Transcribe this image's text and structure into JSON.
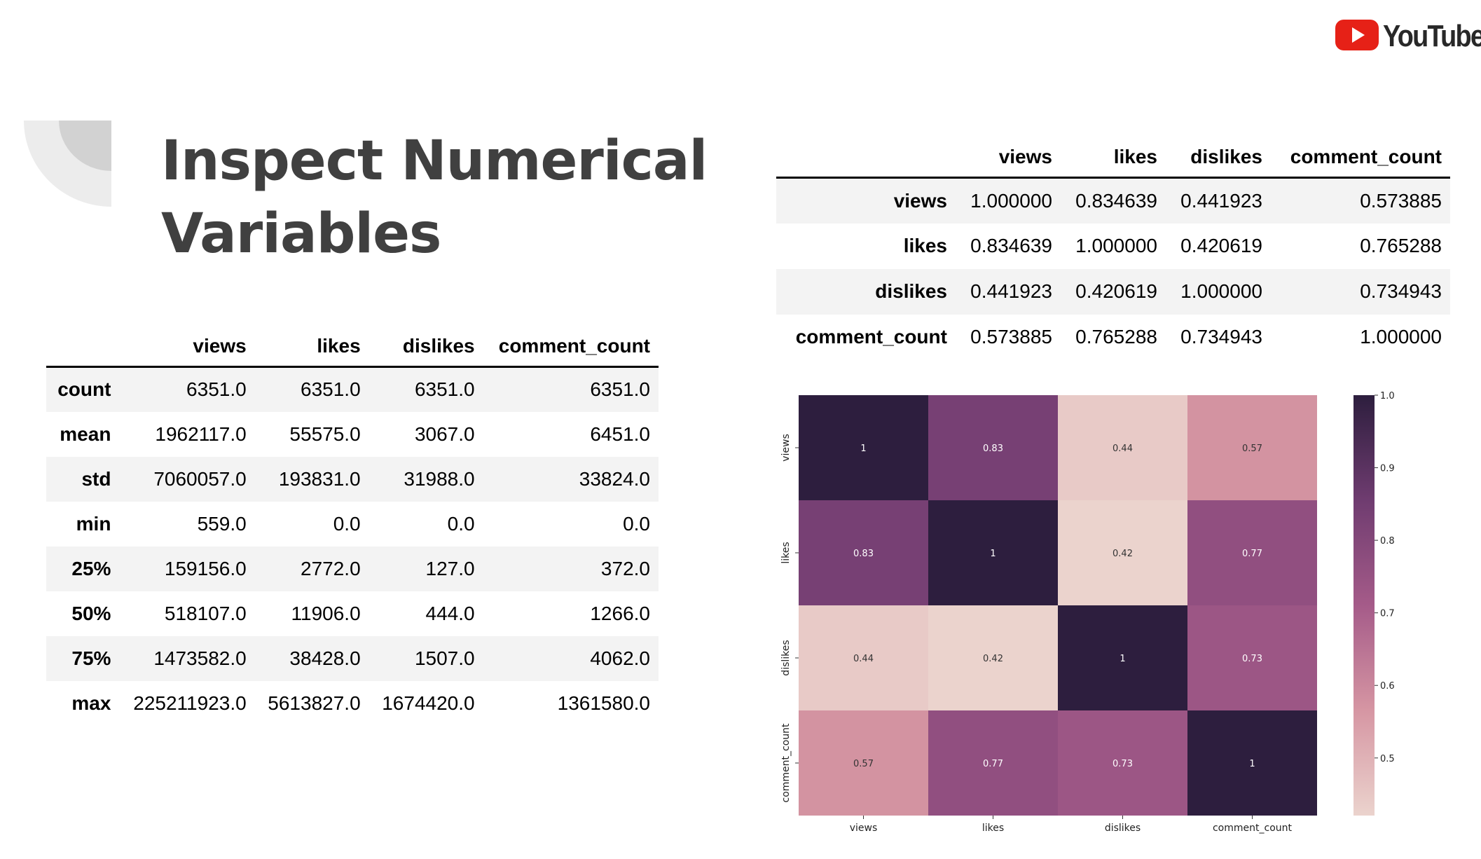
{
  "slide": {
    "title_lines": [
      "Inspect Numerical",
      "Variables"
    ],
    "logo_text": "YouTube",
    "logo_icon": "youtube-play-icon",
    "decoration_icon": "quarter-circle-shape"
  },
  "describe_table": {
    "columns": [
      "views",
      "likes",
      "dislikes",
      "comment_count"
    ],
    "rows": [
      {
        "label": "count",
        "values": [
          "6351.0",
          "6351.0",
          "6351.0",
          "6351.0"
        ]
      },
      {
        "label": "mean",
        "values": [
          "1962117.0",
          "55575.0",
          "3067.0",
          "6451.0"
        ]
      },
      {
        "label": "std",
        "values": [
          "7060057.0",
          "193831.0",
          "31988.0",
          "33824.0"
        ]
      },
      {
        "label": "min",
        "values": [
          "559.0",
          "0.0",
          "0.0",
          "0.0"
        ]
      },
      {
        "label": "25%",
        "values": [
          "159156.0",
          "2772.0",
          "127.0",
          "372.0"
        ]
      },
      {
        "label": "50%",
        "values": [
          "518107.0",
          "11906.0",
          "444.0",
          "1266.0"
        ]
      },
      {
        "label": "75%",
        "values": [
          "1473582.0",
          "38428.0",
          "1507.0",
          "4062.0"
        ]
      },
      {
        "label": "max",
        "values": [
          "225211923.0",
          "5613827.0",
          "1674420.0",
          "1361580.0"
        ]
      }
    ]
  },
  "corr_table": {
    "columns": [
      "views",
      "likes",
      "dislikes",
      "comment_count"
    ],
    "rows": [
      {
        "label": "views",
        "values": [
          "1.000000",
          "0.834639",
          "0.441923",
          "0.573885"
        ]
      },
      {
        "label": "likes",
        "values": [
          "0.834639",
          "1.000000",
          "0.420619",
          "0.765288"
        ]
      },
      {
        "label": "dislikes",
        "values": [
          "0.441923",
          "0.420619",
          "1.000000",
          "0.734943"
        ]
      },
      {
        "label": "comment_count",
        "values": [
          "0.573885",
          "0.765288",
          "0.734943",
          "1.000000"
        ]
      }
    ]
  },
  "chart_data": {
    "type": "heatmap",
    "x_categories": [
      "views",
      "likes",
      "dislikes",
      "comment_count"
    ],
    "y_categories": [
      "views",
      "likes",
      "dislikes",
      "comment_count"
    ],
    "values": [
      [
        1.0,
        0.834639,
        0.441923,
        0.573885
      ],
      [
        0.834639,
        1.0,
        0.420619,
        0.765288
      ],
      [
        0.441923,
        0.420619,
        1.0,
        0.734943
      ],
      [
        0.573885,
        0.765288,
        0.734943,
        1.0
      ]
    ],
    "annotations": [
      [
        "1",
        "0.83",
        "0.44",
        "0.57"
      ],
      [
        "0.83",
        "1",
        "0.42",
        "0.77"
      ],
      [
        "0.44",
        "0.42",
        "1",
        "0.73"
      ],
      [
        "0.57",
        "0.77",
        "0.73",
        "1"
      ]
    ],
    "colorbar": {
      "range": [
        0.420619,
        1.0
      ],
      "ticks": [
        0.5,
        0.6,
        0.7,
        0.8,
        0.9,
        1.0
      ],
      "tick_labels": [
        "0.5",
        "0.6",
        "0.7",
        "0.8",
        "0.9",
        "1.0"
      ]
    },
    "colors": {
      "low": "#ebd3cd",
      "mid_low": "#d696a3",
      "mid": "#a55b89",
      "mid_high": "#6f3c70",
      "high": "#2d1e3e"
    },
    "title": "",
    "xlabel": "",
    "ylabel": ""
  }
}
